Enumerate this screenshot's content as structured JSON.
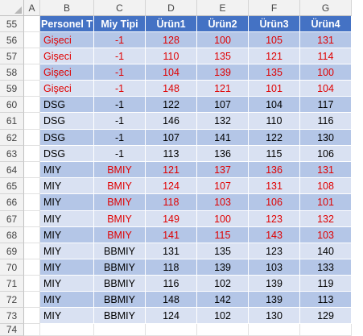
{
  "columns": [
    "A",
    "B",
    "C",
    "D",
    "E",
    "F",
    "G"
  ],
  "header": [
    "Personel T",
    "Miy Tipi",
    "Ürün1",
    "Ürün2",
    "Ürün3",
    "Ürün4"
  ],
  "colors": {
    "header_bg": "#4472c4",
    "band_dark": "#b4c6e7",
    "band_light": "#d9e1f2",
    "red_text": "#e00000",
    "normal_text": "#000000"
  },
  "rows": [
    {
      "num": "55",
      "cells": [
        "Personel T",
        "Miy Tipi",
        "Ürün1",
        "Ürün2",
        "Ürün3",
        "Ürün4"
      ],
      "header": true
    },
    {
      "num": "56",
      "cells": [
        "Gişeci",
        "-1",
        "128",
        "100",
        "105",
        "131"
      ],
      "red": true
    },
    {
      "num": "57",
      "cells": [
        "Gişeci",
        "-1",
        "110",
        "135",
        "121",
        "114"
      ],
      "red": true
    },
    {
      "num": "58",
      "cells": [
        "Gişeci",
        "-1",
        "104",
        "139",
        "135",
        "100"
      ],
      "red": true
    },
    {
      "num": "59",
      "cells": [
        "Gişeci",
        "-1",
        "148",
        "121",
        "101",
        "104"
      ],
      "red": true
    },
    {
      "num": "60",
      "cells": [
        "DSG",
        "-1",
        "122",
        "107",
        "104",
        "117"
      ],
      "red": false
    },
    {
      "num": "61",
      "cells": [
        "DSG",
        "-1",
        "146",
        "132",
        "110",
        "116"
      ],
      "red": false
    },
    {
      "num": "62",
      "cells": [
        "DSG",
        "-1",
        "107",
        "141",
        "122",
        "130"
      ],
      "red": false
    },
    {
      "num": "63",
      "cells": [
        "DSG",
        "-1",
        "113",
        "136",
        "115",
        "106"
      ],
      "red": false
    },
    {
      "num": "64",
      "cells": [
        "MIY",
        "BMIY",
        "121",
        "137",
        "136",
        "131"
      ],
      "red": "partial"
    },
    {
      "num": "65",
      "cells": [
        "MIY",
        "BMIY",
        "124",
        "107",
        "131",
        "108"
      ],
      "red": "partial"
    },
    {
      "num": "66",
      "cells": [
        "MIY",
        "BMIY",
        "118",
        "103",
        "106",
        "101"
      ],
      "red": "partial"
    },
    {
      "num": "67",
      "cells": [
        "MIY",
        "BMIY",
        "149",
        "100",
        "123",
        "132"
      ],
      "red": "partial"
    },
    {
      "num": "68",
      "cells": [
        "MIY",
        "BMIY",
        "141",
        "115",
        "143",
        "103"
      ],
      "red": "partial"
    },
    {
      "num": "69",
      "cells": [
        "MIY",
        "BBMIY",
        "131",
        "135",
        "123",
        "140"
      ],
      "red": false
    },
    {
      "num": "70",
      "cells": [
        "MIY",
        "BBMIY",
        "118",
        "139",
        "103",
        "133"
      ],
      "red": false
    },
    {
      "num": "71",
      "cells": [
        "MIY",
        "BBMIY",
        "116",
        "102",
        "139",
        "119"
      ],
      "red": false
    },
    {
      "num": "72",
      "cells": [
        "MIY",
        "BBMIY",
        "148",
        "142",
        "139",
        "113"
      ],
      "red": false
    },
    {
      "num": "73",
      "cells": [
        "MIY",
        "BBMIY",
        "124",
        "102",
        "130",
        "129"
      ],
      "red": false
    },
    {
      "num": "74",
      "cells": [
        "",
        "",
        "",
        "",
        "",
        ""
      ],
      "empty": true
    }
  ]
}
